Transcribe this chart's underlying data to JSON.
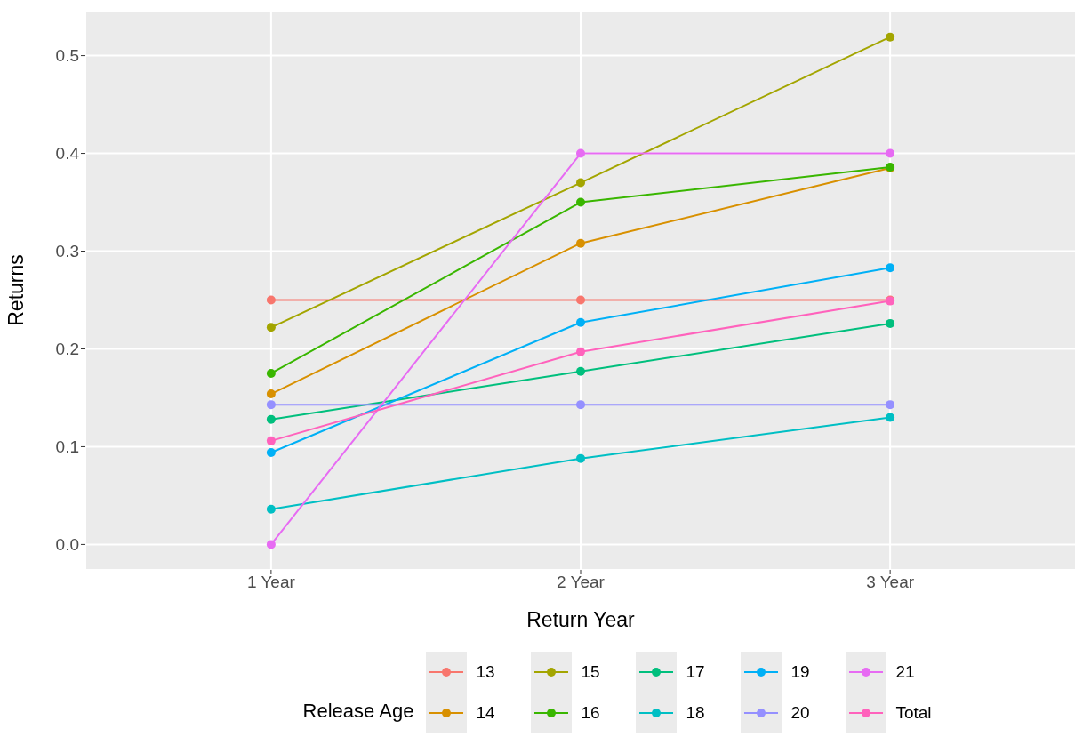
{
  "chart_data": {
    "type": "line",
    "xlabel": "Return Year",
    "ylabel": "Returns",
    "legend_title": "Release Age",
    "categories": [
      "1 Year",
      "2 Year",
      "3 Year"
    ],
    "series": [
      {
        "name": "13",
        "color": "#f8766d",
        "values": [
          0.25,
          0.25,
          0.25
        ]
      },
      {
        "name": "14",
        "color": "#d89000",
        "values": [
          0.154,
          0.308,
          0.385
        ]
      },
      {
        "name": "15",
        "color": "#a3a500",
        "values": [
          0.222,
          0.37,
          0.519
        ]
      },
      {
        "name": "16",
        "color": "#39b600",
        "values": [
          0.175,
          0.35,
          0.386
        ]
      },
      {
        "name": "17",
        "color": "#00bf7d",
        "values": [
          0.128,
          0.177,
          0.226
        ]
      },
      {
        "name": "18",
        "color": "#00bfc4",
        "values": [
          0.036,
          0.088,
          0.13
        ]
      },
      {
        "name": "19",
        "color": "#00b0f6",
        "values": [
          0.094,
          0.227,
          0.283
        ]
      },
      {
        "name": "20",
        "color": "#9590ff",
        "values": [
          0.143,
          0.143,
          0.143
        ]
      },
      {
        "name": "21",
        "color": "#e76bf3",
        "values": [
          0,
          0.4,
          0.4
        ]
      },
      {
        "name": "Total",
        "color": "#ff62bc",
        "values": [
          0.106,
          0.197,
          0.249
        ]
      }
    ],
    "ylim": [
      -0.026,
      0.546
    ],
    "yticks": [
      {
        "value": 0,
        "label": "0.0"
      },
      0.1,
      0.2,
      0.3,
      0.4,
      0.5
    ],
    "grid": true,
    "legend": "bottom",
    "marker": "circle",
    "line_style": "solid"
  }
}
